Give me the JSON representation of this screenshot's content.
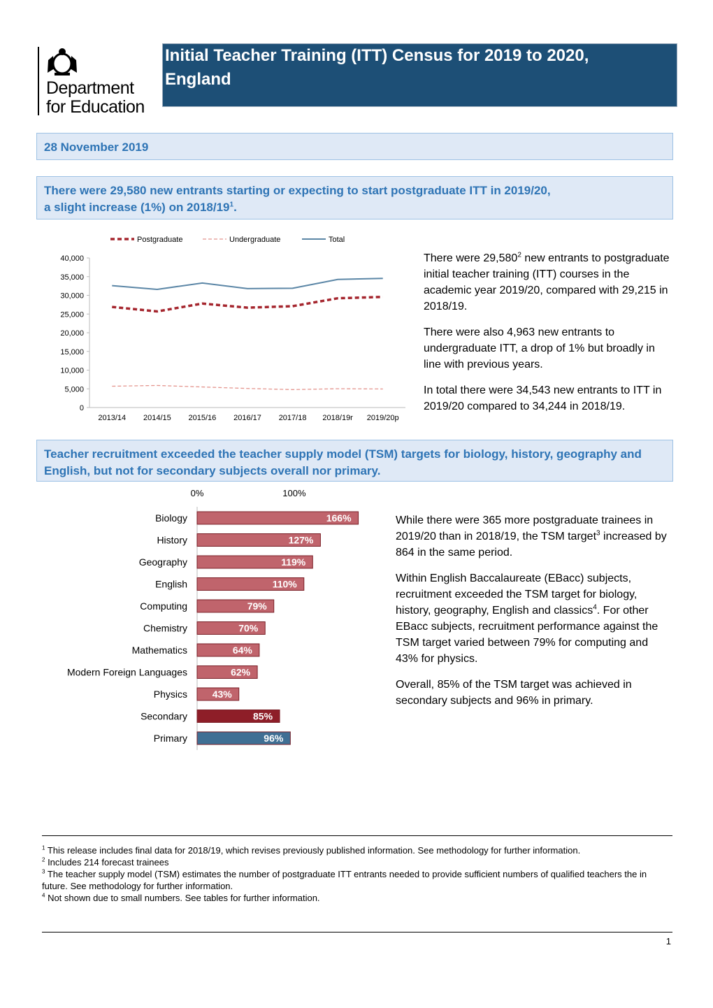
{
  "header": {
    "logo_lines": [
      "Department",
      "for Education"
    ],
    "title_lines": [
      "Initial Teacher Training (ITT) Census for 2019 to 2020,",
      "England"
    ]
  },
  "date": "28 November 2019",
  "headline_1": [
    "There were 29,580 new entrants starting or expecting to start postgraduate ITT in 2019/20,",
    "a slight increase (1%) on 2018/19",
    {
      "sup": "1"
    },
    "."
  ],
  "section_1": [
    [
      "There were 29,580",
      {
        "sup": "2"
      },
      " new entrants to postgraduate initial teacher training (ITT) courses in the academic year 2019/20, compared with 29,215 in 2018/19."
    ],
    [
      "There were also 4,963 new entrants to undergraduate ITT, a drop of 1% but broadly in line with previous years."
    ],
    [
      "In total there were 34,543 new entrants to ITT in 2019/20 compared to 34,244 in 2018/19."
    ]
  ],
  "headline_2": [
    "Teacher recruitment exceeded the teacher supply model (TSM) targets for biology, history, geography and English, but not for secondary subjects overall nor primary."
  ],
  "section_2": [
    [
      "While there were 365 more postgraduate trainees in 2019/20 than in 2018/19, the TSM target",
      {
        "sup": "3"
      },
      " increased by 864 in the same period."
    ],
    [
      "Within English Baccalaureate (EBacc) subjects, recruitment exceeded the TSM target for biology, history, geography, English and classics",
      {
        "sup": "4"
      },
      ". For other EBacc subjects, recruitment performance against the TSM target varied between 79% for computing and 43% for physics."
    ],
    [
      "Overall, 85% of the TSM target was achieved in secondary subjects and 96% in primary."
    ]
  ],
  "chart_data": [
    {
      "type": "line",
      "categories": [
        "2013/14",
        "2014/15",
        "2015/16",
        "2016/17",
        "2017/18",
        "2018/19r",
        "2019/20p"
      ],
      "series": [
        {
          "name": "Postgraduate",
          "color": "#a5262e",
          "dash": "dashed-bold",
          "values": [
            26900,
            25700,
            27800,
            26700,
            27100,
            29215,
            29580
          ]
        },
        {
          "name": "Undergraduate",
          "color": "#e4948d",
          "dash": "dashed",
          "values": [
            5700,
            5900,
            5500,
            5100,
            4800,
            5029,
            4963
          ]
        },
        {
          "name": "Total",
          "color": "#5b86a6",
          "dash": "solid",
          "values": [
            32600,
            31600,
            33300,
            31800,
            31900,
            34244,
            34543
          ]
        }
      ],
      "ylim": [
        0,
        40000
      ],
      "yticks": [
        0,
        {
          "value": 5000,
          "label": "5,000"
        },
        {
          "value": 10000,
          "label": "10,000"
        },
        {
          "value": 15000,
          "label": "15,000"
        },
        {
          "value": 20000,
          "label": "20,000"
        },
        {
          "value": 25000,
          "label": "25,000"
        },
        {
          "value": 30000,
          "label": "30,000"
        },
        {
          "value": 35000,
          "label": "35,000"
        },
        {
          "value": 40000,
          "label": "40,000"
        }
      ],
      "legend": "top"
    },
    {
      "type": "hbar",
      "categories": [
        "Biology",
        "History",
        "Geography",
        "English",
        "Computing",
        "Chemistry",
        "Mathematics",
        "Modern Foreign Languages",
        "Physics",
        "Secondary",
        "Primary"
      ],
      "values": [
        166,
        127,
        119,
        110,
        79,
        70,
        64,
        62,
        43,
        85,
        96
      ],
      "value_labels": [
        "166%",
        "127%",
        "119%",
        "110%",
        "79%",
        "70%",
        "64%",
        "62%",
        "43%",
        "85%",
        "96%"
      ],
      "colors": [
        "#c0646c",
        "#c0646c",
        "#c0646c",
        "#c0646c",
        "#c0646c",
        "#c0646c",
        "#c0646c",
        "#c0646c",
        "#c0646c",
        "#8e1e28",
        "#3f6f94"
      ],
      "xlim": [
        0,
        180
      ],
      "xticks": [
        {
          "value": 0,
          "label": "0%"
        },
        {
          "value": 100,
          "label": "100%"
        }
      ]
    }
  ],
  "footnotes": [
    {
      "sup": "1",
      "text": " This release includes final data for 2018/19, which revises previously published information. See methodology for further information."
    },
    {
      "sup": "2",
      "text": " Includes 214 forecast trainees"
    },
    {
      "sup": "3",
      "text": " The teacher supply model (TSM) estimates the number of postgraduate ITT entrants needed to provide sufficient numbers of qualified teachers the in future. See methodology for further information."
    },
    {
      "sup": "4",
      "text": " Not shown due to small numbers. See tables for further information."
    }
  ],
  "page_number": "1"
}
